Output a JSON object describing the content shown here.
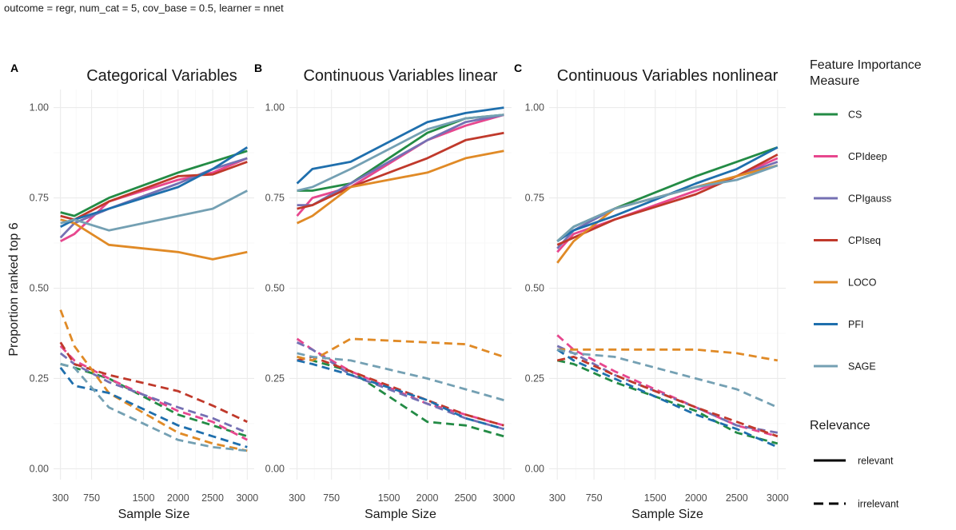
{
  "caption": "outcome = regr, num_cat = 5, cov_base = 0.5, learner = nnet",
  "colors": {
    "CS": "#238b45",
    "CPIdeep": "#e7478e",
    "CPIgauss": "#7570b3",
    "CPIseq": "#c0392b",
    "LOCO": "#e08a26",
    "PFI": "#1f6fad",
    "SAGE": "#74a0b3"
  },
  "chart_data": {
    "type": "line",
    "ylabel": "Proportion ranked top 6",
    "xlabel": "Sample Size",
    "ylim": [
      -0.03,
      1.05
    ],
    "xlim": [
      200,
      3100
    ],
    "x": [
      300,
      500,
      1000,
      2000,
      2500,
      3000
    ],
    "x_ticks": [
      300,
      750,
      1500,
      2000,
      2500,
      3000
    ],
    "y_ticks": [
      0.0,
      0.25,
      0.5,
      0.75,
      1.0
    ],
    "y_tick_labels": [
      "0.00",
      "0.25",
      "0.50",
      "0.75",
      "1.00"
    ],
    "legend_feature": {
      "title_line1": "Feature Importance",
      "title_line2": "Measure",
      "entries": [
        "CS",
        "CPIdeep",
        "CPIgauss",
        "CPIseq",
        "LOCO",
        "PFI",
        "SAGE"
      ]
    },
    "legend_relevance": {
      "title": "Relevance",
      "entries": [
        "relevant",
        "irrelevant"
      ]
    },
    "panels": [
      {
        "letter": "A",
        "title": "Categorical Variables",
        "series": [
          {
            "name": "CS",
            "relevance": "relevant",
            "values": [
              0.71,
              0.7,
              0.75,
              0.82,
              0.85,
              0.88
            ]
          },
          {
            "name": "CPIdeep",
            "relevance": "relevant",
            "values": [
              0.63,
              0.65,
              0.74,
              0.8,
              0.82,
              0.86
            ]
          },
          {
            "name": "CPIgauss",
            "relevance": "relevant",
            "values": [
              0.64,
              0.68,
              0.72,
              0.79,
              0.83,
              0.86
            ]
          },
          {
            "name": "CPIseq",
            "relevance": "relevant",
            "values": [
              0.7,
              0.69,
              0.74,
              0.81,
              0.815,
              0.85
            ]
          },
          {
            "name": "LOCO",
            "relevance": "relevant",
            "values": [
              0.69,
              0.68,
              0.62,
              0.6,
              0.58,
              0.6
            ]
          },
          {
            "name": "PFI",
            "relevance": "relevant",
            "values": [
              0.67,
              0.69,
              0.72,
              0.78,
              0.83,
              0.89
            ]
          },
          {
            "name": "SAGE",
            "relevance": "relevant",
            "values": [
              0.68,
              0.69,
              0.66,
              0.7,
              0.72,
              0.77
            ]
          },
          {
            "name": "CS",
            "relevance": "irrelevant",
            "values": [
              0.29,
              0.28,
              0.25,
              0.15,
              0.12,
              0.09
            ]
          },
          {
            "name": "CPIdeep",
            "relevance": "irrelevant",
            "values": [
              0.34,
              0.3,
              0.25,
              0.16,
              0.13,
              0.08
            ]
          },
          {
            "name": "CPIgauss",
            "relevance": "irrelevant",
            "values": [
              0.32,
              0.29,
              0.24,
              0.17,
              0.14,
              0.1
            ]
          },
          {
            "name": "CPIseq",
            "relevance": "irrelevant",
            "values": [
              0.35,
              0.29,
              0.26,
              0.215,
              0.175,
              0.13
            ]
          },
          {
            "name": "LOCO",
            "relevance": "irrelevant",
            "values": [
              0.44,
              0.34,
              0.21,
              0.1,
              0.07,
              0.05
            ]
          },
          {
            "name": "PFI",
            "relevance": "irrelevant",
            "values": [
              0.28,
              0.23,
              0.21,
              0.12,
              0.09,
              0.06
            ]
          },
          {
            "name": "SAGE",
            "relevance": "irrelevant",
            "values": [
              0.29,
              0.28,
              0.17,
              0.08,
              0.06,
              0.05
            ]
          }
        ]
      },
      {
        "letter": "B",
        "title": "Continuous Variables linear",
        "series": [
          {
            "name": "CS",
            "relevance": "relevant",
            "values": [
              0.77,
              0.77,
              0.79,
              0.93,
              0.97,
              0.98
            ]
          },
          {
            "name": "CPIdeep",
            "relevance": "relevant",
            "values": [
              0.7,
              0.75,
              0.78,
              0.91,
              0.95,
              0.98
            ]
          },
          {
            "name": "CPIgauss",
            "relevance": "relevant",
            "values": [
              0.73,
              0.73,
              0.79,
              0.91,
              0.96,
              0.98
            ]
          },
          {
            "name": "CPIseq",
            "relevance": "relevant",
            "values": [
              0.72,
              0.73,
              0.78,
              0.86,
              0.91,
              0.93
            ]
          },
          {
            "name": "LOCO",
            "relevance": "relevant",
            "values": [
              0.68,
              0.7,
              0.78,
              0.82,
              0.86,
              0.88
            ]
          },
          {
            "name": "PFI",
            "relevance": "relevant",
            "values": [
              0.79,
              0.83,
              0.85,
              0.96,
              0.985,
              1.0
            ]
          },
          {
            "name": "SAGE",
            "relevance": "relevant",
            "values": [
              0.77,
              0.78,
              0.83,
              0.94,
              0.97,
              0.98
            ]
          },
          {
            "name": "CS",
            "relevance": "irrelevant",
            "values": [
              0.31,
              0.3,
              0.27,
              0.13,
              0.12,
              0.09
            ]
          },
          {
            "name": "CPIdeep",
            "relevance": "irrelevant",
            "values": [
              0.36,
              0.33,
              0.27,
              0.18,
              0.15,
              0.12
            ]
          },
          {
            "name": "CPIgauss",
            "relevance": "irrelevant",
            "values": [
              0.35,
              0.33,
              0.26,
              0.18,
              0.14,
              0.11
            ]
          },
          {
            "name": "CPIseq",
            "relevance": "irrelevant",
            "values": [
              0.3,
              0.31,
              0.27,
              0.19,
              0.15,
              0.12
            ]
          },
          {
            "name": "LOCO",
            "relevance": "irrelevant",
            "values": [
              0.31,
              0.3,
              0.36,
              0.35,
              0.345,
              0.31
            ]
          },
          {
            "name": "PFI",
            "relevance": "irrelevant",
            "values": [
              0.3,
              0.29,
              0.26,
              0.19,
              0.14,
              0.11
            ]
          },
          {
            "name": "SAGE",
            "relevance": "irrelevant",
            "values": [
              0.32,
              0.31,
              0.3,
              0.25,
              0.22,
              0.19
            ]
          }
        ]
      },
      {
        "letter": "C",
        "title": "Continuous Variables nonlinear",
        "series": [
          {
            "name": "CS",
            "relevance": "relevant",
            "values": [
              0.63,
              0.67,
              0.72,
              0.81,
              0.85,
              0.89
            ]
          },
          {
            "name": "CPIdeep",
            "relevance": "relevant",
            "values": [
              0.6,
              0.65,
              0.69,
              0.77,
              0.81,
              0.86
            ]
          },
          {
            "name": "CPIgauss",
            "relevance": "relevant",
            "values": [
              0.61,
              0.66,
              0.72,
              0.78,
              0.81,
              0.85
            ]
          },
          {
            "name": "CPIseq",
            "relevance": "relevant",
            "values": [
              0.62,
              0.64,
              0.69,
              0.76,
              0.81,
              0.87
            ]
          },
          {
            "name": "LOCO",
            "relevance": "relevant",
            "values": [
              0.57,
              0.63,
              0.72,
              0.78,
              0.81,
              0.84
            ]
          },
          {
            "name": "PFI",
            "relevance": "relevant",
            "values": [
              0.63,
              0.66,
              0.7,
              0.79,
              0.83,
              0.89
            ]
          },
          {
            "name": "SAGE",
            "relevance": "relevant",
            "values": [
              0.63,
              0.67,
              0.72,
              0.78,
              0.8,
              0.84
            ]
          },
          {
            "name": "CS",
            "relevance": "irrelevant",
            "values": [
              0.3,
              0.29,
              0.24,
              0.16,
              0.1,
              0.07
            ]
          },
          {
            "name": "CPIdeep",
            "relevance": "irrelevant",
            "values": [
              0.37,
              0.33,
              0.27,
              0.17,
              0.12,
              0.09
            ]
          },
          {
            "name": "CPIgauss",
            "relevance": "irrelevant",
            "values": [
              0.34,
              0.32,
              0.26,
              0.17,
              0.12,
              0.1
            ]
          },
          {
            "name": "CPIseq",
            "relevance": "irrelevant",
            "values": [
              0.3,
              0.31,
              0.26,
              0.17,
              0.13,
              0.09
            ]
          },
          {
            "name": "LOCO",
            "relevance": "irrelevant",
            "values": [
              0.33,
              0.33,
              0.33,
              0.33,
              0.32,
              0.3
            ]
          },
          {
            "name": "PFI",
            "relevance": "irrelevant",
            "values": [
              0.33,
              0.3,
              0.25,
              0.15,
              0.11,
              0.06
            ]
          },
          {
            "name": "SAGE",
            "relevance": "irrelevant",
            "values": [
              0.33,
              0.32,
              0.31,
              0.25,
              0.22,
              0.17
            ]
          }
        ]
      }
    ]
  }
}
